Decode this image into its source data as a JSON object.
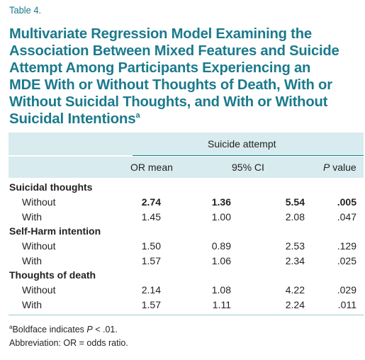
{
  "table": {
    "label": "Table 4.",
    "caption_lines": [
      "Multivariate Regression Model Examining the",
      "Association Between Mixed Features and Suicide",
      "Attempt Among Participants Experiencing an",
      "MDE With or Without Thoughts of Death, With or",
      "Without Suicidal Thoughts, and With or Without",
      "Suicidal Intentions"
    ],
    "caption_footnote_mark": "a",
    "spanner": "Suicide attempt",
    "columns": {
      "or_mean": "OR mean",
      "ci": "95% CI",
      "p_italic": "P",
      "p_rest": " value"
    },
    "sections": [
      {
        "name": "Suicidal thoughts",
        "rows": [
          {
            "label": "Without",
            "or": "2.74",
            "ci_low": "1.36",
            "ci_high": "5.54",
            "p": ".005",
            "bold": true
          },
          {
            "label": "With",
            "or": "1.45",
            "ci_low": "1.00",
            "ci_high": "2.08",
            "p": ".047",
            "bold": false
          }
        ]
      },
      {
        "name": "Self-Harm intention",
        "rows": [
          {
            "label": "Without",
            "or": "1.50",
            "ci_low": "0.89",
            "ci_high": "2.53",
            "p": ".129",
            "bold": false
          },
          {
            "label": "With",
            "or": "1.57",
            "ci_low": "1.06",
            "ci_high": "2.34",
            "p": ".025",
            "bold": false
          }
        ]
      },
      {
        "name": "Thoughts of death",
        "rows": [
          {
            "label": "Without",
            "or": "2.14",
            "ci_low": "1.08",
            "ci_high": "4.22",
            "p": ".029",
            "bold": false
          },
          {
            "label": "With",
            "or": "1.57",
            "ci_low": "1.11",
            "ci_high": "2.24",
            "p": ".011",
            "bold": false
          }
        ]
      }
    ],
    "footnotes": {
      "mark": "a",
      "boldface_pre": "Boldface indicates ",
      "boldface_p": "P",
      "boldface_post": " < .01.",
      "abbreviation": "Abbreviation: OR = odds ratio."
    }
  },
  "colors": {
    "accent": "#1b7a8c",
    "band": "#d8ebef",
    "text": "#231f20"
  }
}
